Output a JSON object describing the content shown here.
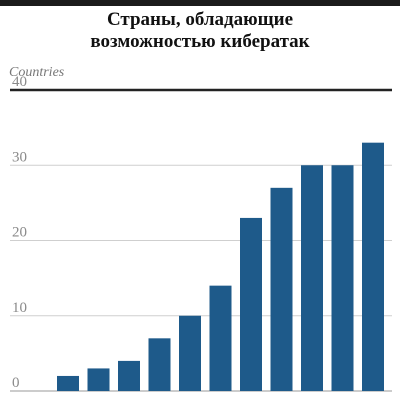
{
  "chart_data": {
    "type": "bar",
    "title_lines": [
      "Страны, обладающие",
      "возможностью кибератак"
    ],
    "ylabel": "Countries",
    "xlabel": "",
    "ylim": [
      0,
      40
    ],
    "yticks": [
      0,
      10,
      20,
      30,
      40
    ],
    "grid": true,
    "legend": "none",
    "categories": [
      "",
      "",
      "",
      "",
      "",
      "",
      "",
      "",
      "",
      "",
      ""
    ],
    "values": [
      2,
      3,
      4,
      7,
      10,
      14,
      23,
      27,
      30,
      30,
      33
    ],
    "bar_color": "#1e5a8a",
    "grid_color": "#cfcfcf",
    "top_rule_color": "#222222"
  }
}
